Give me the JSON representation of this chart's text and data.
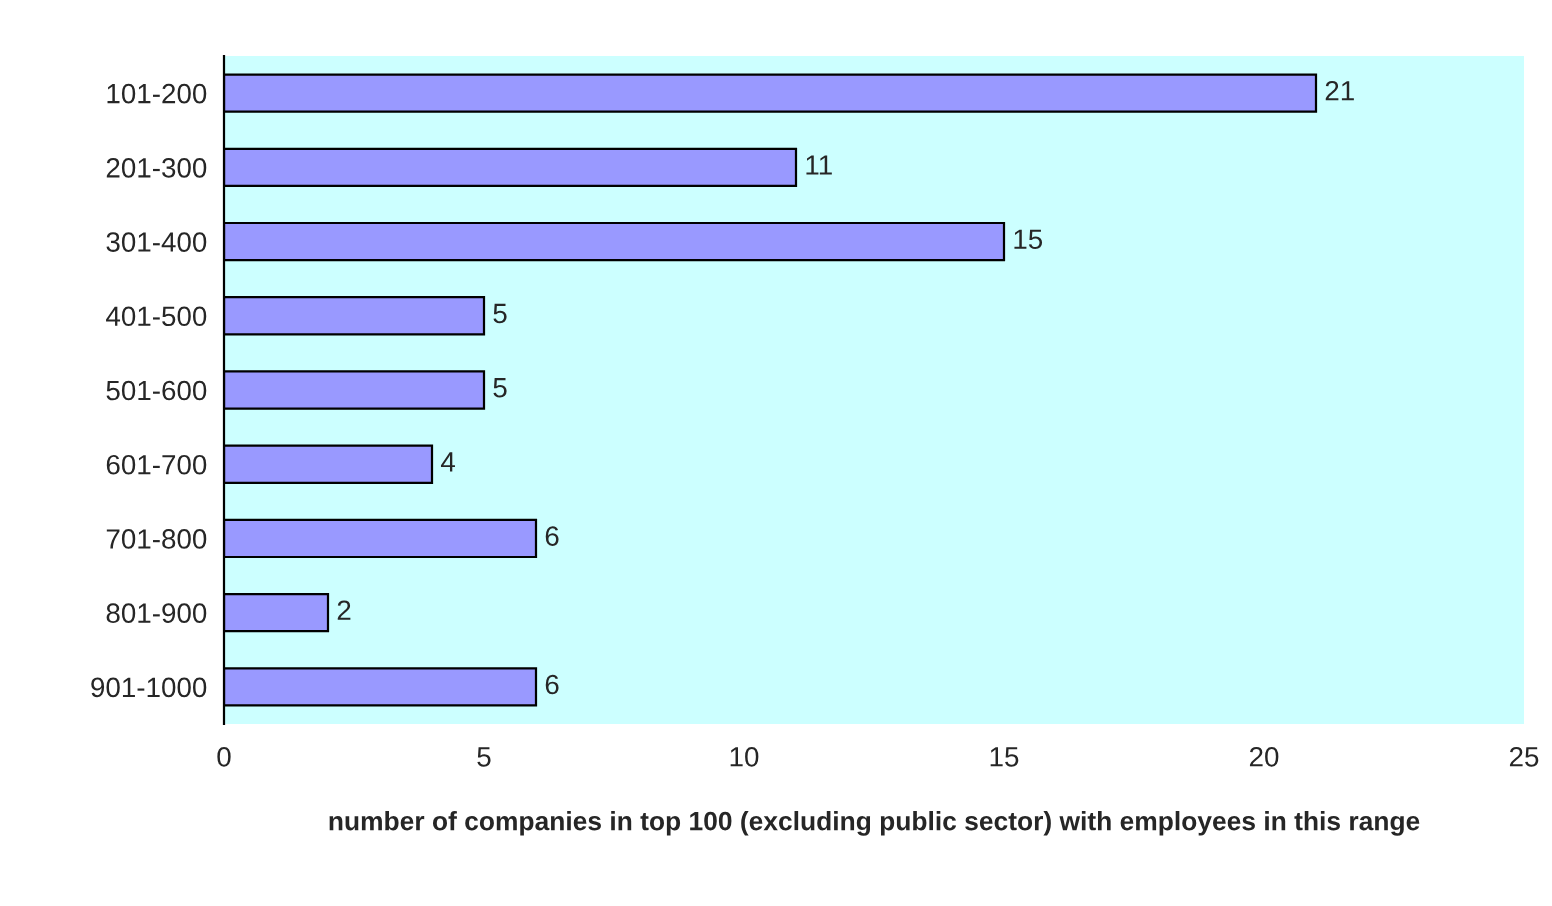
{
  "chart_data": {
    "type": "bar",
    "orientation": "horizontal",
    "xlabel": "number of companies in top 100 (excluding public sector) with employees in this range",
    "categories": [
      "101-200",
      "201-300",
      "301-400",
      "401-500",
      "501-600",
      "601-700",
      "701-800",
      "801-900",
      "901-1000"
    ],
    "values": [
      21,
      11,
      15,
      5,
      5,
      4,
      6,
      2,
      6
    ],
    "color": "#9999ff",
    "xlim": [
      0,
      25
    ],
    "xticks": [
      0,
      5,
      10,
      15,
      20,
      25
    ],
    "data_labels": true,
    "grid": false,
    "legend": false
  }
}
